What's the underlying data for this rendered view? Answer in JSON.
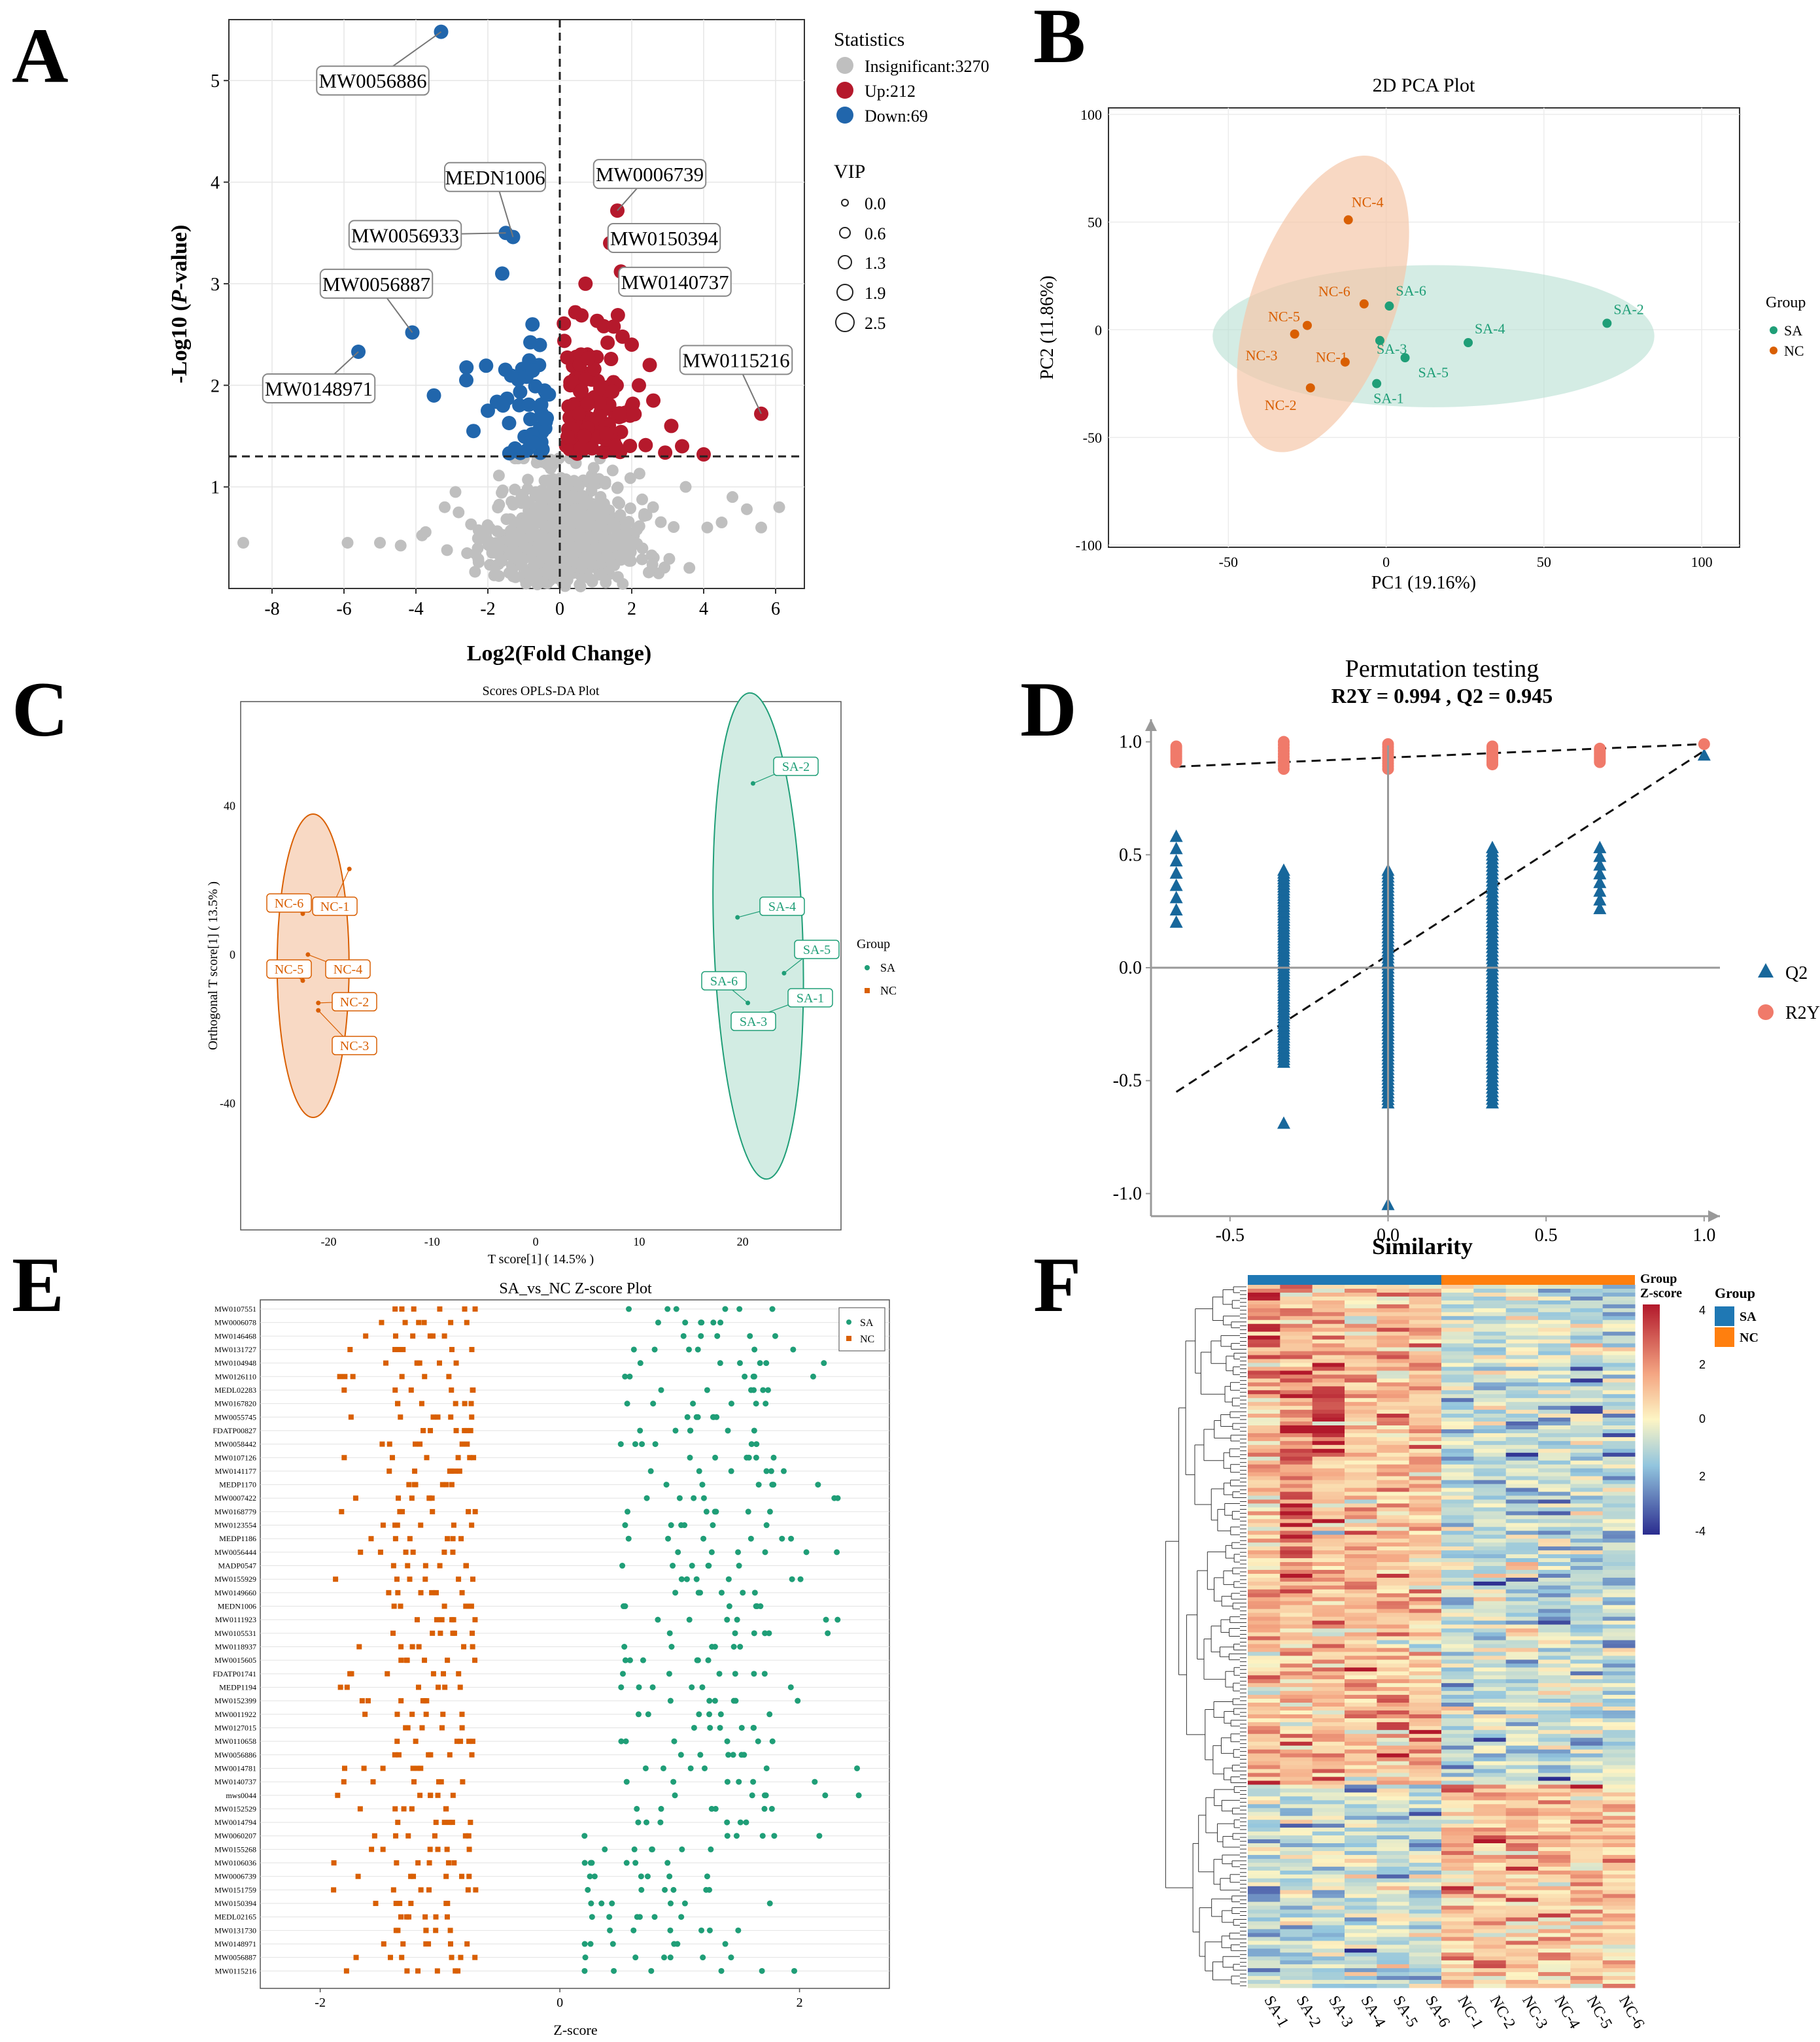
{
  "panel_letters": [
    "A",
    "B",
    "C",
    "D",
    "E",
    "F"
  ],
  "colors": {
    "insignificant": "#bfbfbf",
    "up": "#b5192c",
    "down": "#2166ac",
    "sa": "#1f9e77",
    "nc": "#d95f02",
    "sa_fill": "#b8e0d2",
    "nc_fill": "#f5c7a9",
    "q2": "#17679b",
    "r2y": "#f07a6a",
    "hm_low": "#2b2c8f",
    "hm_mid": "#fdf5c4",
    "hm_high": "#b2182b",
    "sa_bar": "#1f78b4",
    "nc_bar": "#ff7f0e"
  },
  "chart_data": [
    {
      "id": "A",
      "type": "scatter",
      "title": "",
      "xlabel": "Log2(Fold Change)",
      "ylabel_prefix": "-Log10 (",
      "ylabel_italic": "P",
      "ylabel_suffix": "-value)",
      "xlim": [
        -9.2,
        6.8
      ],
      "ylim": [
        0,
        5.6
      ],
      "xticks": [
        -8,
        -6,
        -4,
        -2,
        0,
        2,
        4,
        6
      ],
      "yticks": [
        1,
        2,
        3,
        4,
        5
      ],
      "threshold_y": 1.3,
      "threshold_x": 0,
      "legend_stats_title": "Statistics",
      "legend_stats": [
        "Insignificant:3270",
        "Up:212",
        "Down:69"
      ],
      "legend_vip_title": "VIP",
      "legend_vip": [
        "0.0",
        "0.6",
        "1.3",
        "1.9",
        "2.5"
      ],
      "labels": [
        {
          "text": "MW0056886",
          "x": -3.3,
          "y": 5.48,
          "lx": -5.2,
          "ly": 5.0
        },
        {
          "text": "MEDN1006",
          "x": -1.3,
          "y": 3.46,
          "lx": -1.8,
          "ly": 4.05
        },
        {
          "text": "MW0056933",
          "x": -1.5,
          "y": 3.5,
          "lx": -4.3,
          "ly": 3.48
        },
        {
          "text": "MW0056887",
          "x": -4.1,
          "y": 2.52,
          "lx": -5.1,
          "ly": 3.0
        },
        {
          "text": "MW0148971",
          "x": -5.6,
          "y": 2.33,
          "lx": -6.7,
          "ly": 1.97
        },
        {
          "text": "MW0006739",
          "x": 1.6,
          "y": 3.72,
          "lx": 2.5,
          "ly": 4.08
        },
        {
          "text": "MW0150394",
          "x": 1.4,
          "y": 3.4,
          "lx": 2.9,
          "ly": 3.45
        },
        {
          "text": "MW0140737",
          "x": 1.7,
          "y": 3.12,
          "lx": 3.2,
          "ly": 3.02
        },
        {
          "text": "MW0115216",
          "x": 5.6,
          "y": 1.72,
          "lx": 4.9,
          "ly": 2.25
        }
      ]
    },
    {
      "id": "B",
      "type": "scatter",
      "title": "2D PCA Plot",
      "xlabel": "PC1 (19.16%)",
      "ylabel": "PC2 (11.86%)",
      "xlim": [
        -88,
        112
      ],
      "ylim": [
        -101,
        103
      ],
      "xticks": [
        -50,
        0,
        50,
        100
      ],
      "yticks": [
        -100,
        -50,
        0,
        50,
        100
      ],
      "legend_title": "Group",
      "legend": [
        "SA",
        "NC"
      ],
      "points": [
        {
          "label": "SA-1",
          "group": "SA",
          "x": -3,
          "y": -25
        },
        {
          "label": "SA-2",
          "group": "SA",
          "x": 70,
          "y": 3
        },
        {
          "label": "SA-3",
          "group": "SA",
          "x": -2,
          "y": -5
        },
        {
          "label": "SA-4",
          "group": "SA",
          "x": 26,
          "y": -6
        },
        {
          "label": "SA-5",
          "group": "SA",
          "x": 6,
          "y": -13
        },
        {
          "label": "SA-6",
          "group": "SA",
          "x": 1,
          "y": 11
        },
        {
          "label": "NC-1",
          "group": "NC",
          "x": -13,
          "y": -15
        },
        {
          "label": "NC-2",
          "group": "NC",
          "x": -24,
          "y": -27
        },
        {
          "label": "NC-3",
          "group": "NC",
          "x": -29,
          "y": -2
        },
        {
          "label": "NC-4",
          "group": "NC",
          "x": -12,
          "y": 51
        },
        {
          "label": "NC-5",
          "group": "NC",
          "x": -25,
          "y": 2
        },
        {
          "label": "NC-6",
          "group": "NC",
          "x": -7,
          "y": 12
        }
      ]
    },
    {
      "id": "C",
      "type": "scatter",
      "title": "Scores OPLS-DA Plot",
      "xlabel": "T score[1] ( 14.5% )",
      "ylabel": "Orthogonal T score[1] ( 13.5% )",
      "xlim": [
        -28.5,
        29.5
      ],
      "ylim": [
        -74,
        68
      ],
      "xticks": [
        -20,
        -10,
        0,
        10,
        20
      ],
      "yticks": [
        -40,
        0,
        40
      ],
      "legend_title": "Group",
      "legend": [
        "SA",
        "NC"
      ],
      "points": [
        {
          "label": "SA-1",
          "group": "SA",
          "x": 22,
          "y": -16
        },
        {
          "label": "SA-2",
          "group": "SA",
          "x": 21,
          "y": 46
        },
        {
          "label": "SA-3",
          "group": "SA",
          "x": 22,
          "y": -19
        },
        {
          "label": "SA-4",
          "group": "SA",
          "x": 19.5,
          "y": 10
        },
        {
          "label": "SA-5",
          "group": "SA",
          "x": 24,
          "y": -5
        },
        {
          "label": "SA-6",
          "group": "SA",
          "x": 20.5,
          "y": -13
        },
        {
          "label": "NC-1",
          "group": "NC",
          "x": -18,
          "y": 23
        },
        {
          "label": "NC-2",
          "group": "NC",
          "x": -21,
          "y": -13
        },
        {
          "label": "NC-3",
          "group": "NC",
          "x": -21,
          "y": -15
        },
        {
          "label": "NC-4",
          "group": "NC",
          "x": -22,
          "y": 0
        },
        {
          "label": "NC-5",
          "group": "NC",
          "x": -22.5,
          "y": -7
        },
        {
          "label": "NC-6",
          "group": "NC",
          "x": -22.5,
          "y": 11
        }
      ]
    },
    {
      "id": "D",
      "type": "scatter",
      "title": "Permutation testing",
      "subtitle": "R2Y = 0.994 ,  Q2 = 0.945",
      "xlabel": "Similarity",
      "xlim": [
        -0.75,
        1.05
      ],
      "ylim": [
        -1.1,
        1.1
      ],
      "xticks": [
        "-0.5",
        "0.0",
        "0.5",
        "1.0"
      ],
      "yticks": [
        "1.0",
        "0.5",
        "0.0",
        "-0.5",
        "-1.0"
      ],
      "legend": [
        "Q2",
        "R2Y"
      ],
      "r2y_line": [
        [
          -0.67,
          0.89
        ],
        [
          1.0,
          0.99
        ]
      ],
      "q2_line": [
        [
          -0.67,
          -0.55
        ],
        [
          1.0,
          0.96
        ]
      ],
      "sim_levels": [
        -0.67,
        -0.33,
        0,
        0.33,
        0.67,
        1.0
      ],
      "r2y_ranges": [
        [
          0.91,
          0.98
        ],
        [
          0.88,
          1.0
        ],
        [
          0.88,
          0.99
        ],
        [
          0.9,
          0.98
        ],
        [
          0.91,
          0.97
        ],
        [
          0.99,
          0.99
        ]
      ],
      "q2_ranges": [
        [
          0.2,
          0.58
        ],
        [
          -0.42,
          0.43
        ],
        [
          -0.6,
          0.43
        ],
        [
          -0.6,
          0.53
        ],
        [
          0.26,
          0.53
        ],
        [
          0.94,
          0.94
        ]
      ],
      "q2_outliers": [
        [
          -0.33,
          -0.69
        ],
        [
          0,
          -1.05
        ]
      ]
    },
    {
      "id": "E",
      "type": "scatter",
      "title": "SA_vs_NC Z-score Plot",
      "xlabel": "Z-score",
      "xlim": [
        -2.5,
        2.75
      ],
      "xticks": [
        -2,
        0,
        2
      ],
      "legend": [
        "SA",
        "NC"
      ],
      "metabolites": [
        "MW0107551",
        "MW0006078",
        "MW0146468",
        "MW0131727",
        "MW0104948",
        "MW0126110",
        "MEDL02283",
        "MW0167820",
        "MW0055745",
        "FDATP00827",
        "MW0058442",
        "MW0107126",
        "MW0141177",
        "MEDP1170",
        "MW0007422",
        "MW0168779",
        "MW0123554",
        "MEDP1186",
        "MW0056444",
        "MADP0547",
        "MW0155929",
        "MW0149660",
        "MEDN1006",
        "MW0111923",
        "MW0105531",
        "MW0118937",
        "MW0015605",
        "FDATP01741",
        "MEDP1194",
        "MW0152399",
        "MW0011922",
        "MW0127015",
        "MW0110658",
        "MW0056886",
        "MW0014781",
        "MW0140737",
        "mws0044",
        "MW0152529",
        "MW0014794",
        "MW0060207",
        "MW0155268",
        "MW0106036",
        "MW0006739",
        "MW0151759",
        "MW0150394",
        "MEDL02165",
        "MW0131730",
        "MW0148971",
        "MW0056887",
        "MW0115216"
      ]
    },
    {
      "id": "F",
      "type": "heatmap",
      "samples": [
        "SA-1",
        "SA-2",
        "SA-3",
        "SA-4",
        "SA-5",
        "SA-6",
        "NC-1",
        "NC-2",
        "NC-3",
        "NC-4",
        "NC-5",
        "NC-6"
      ],
      "legend_title": "Group",
      "legend": [
        "SA",
        "NC"
      ],
      "scale_title_1": "Group",
      "scale_title_2": "Z-score",
      "scale_ticks": [
        "4",
        "2",
        "0",
        "2",
        "-4"
      ],
      "zlim": [
        -4,
        4
      ]
    }
  ]
}
